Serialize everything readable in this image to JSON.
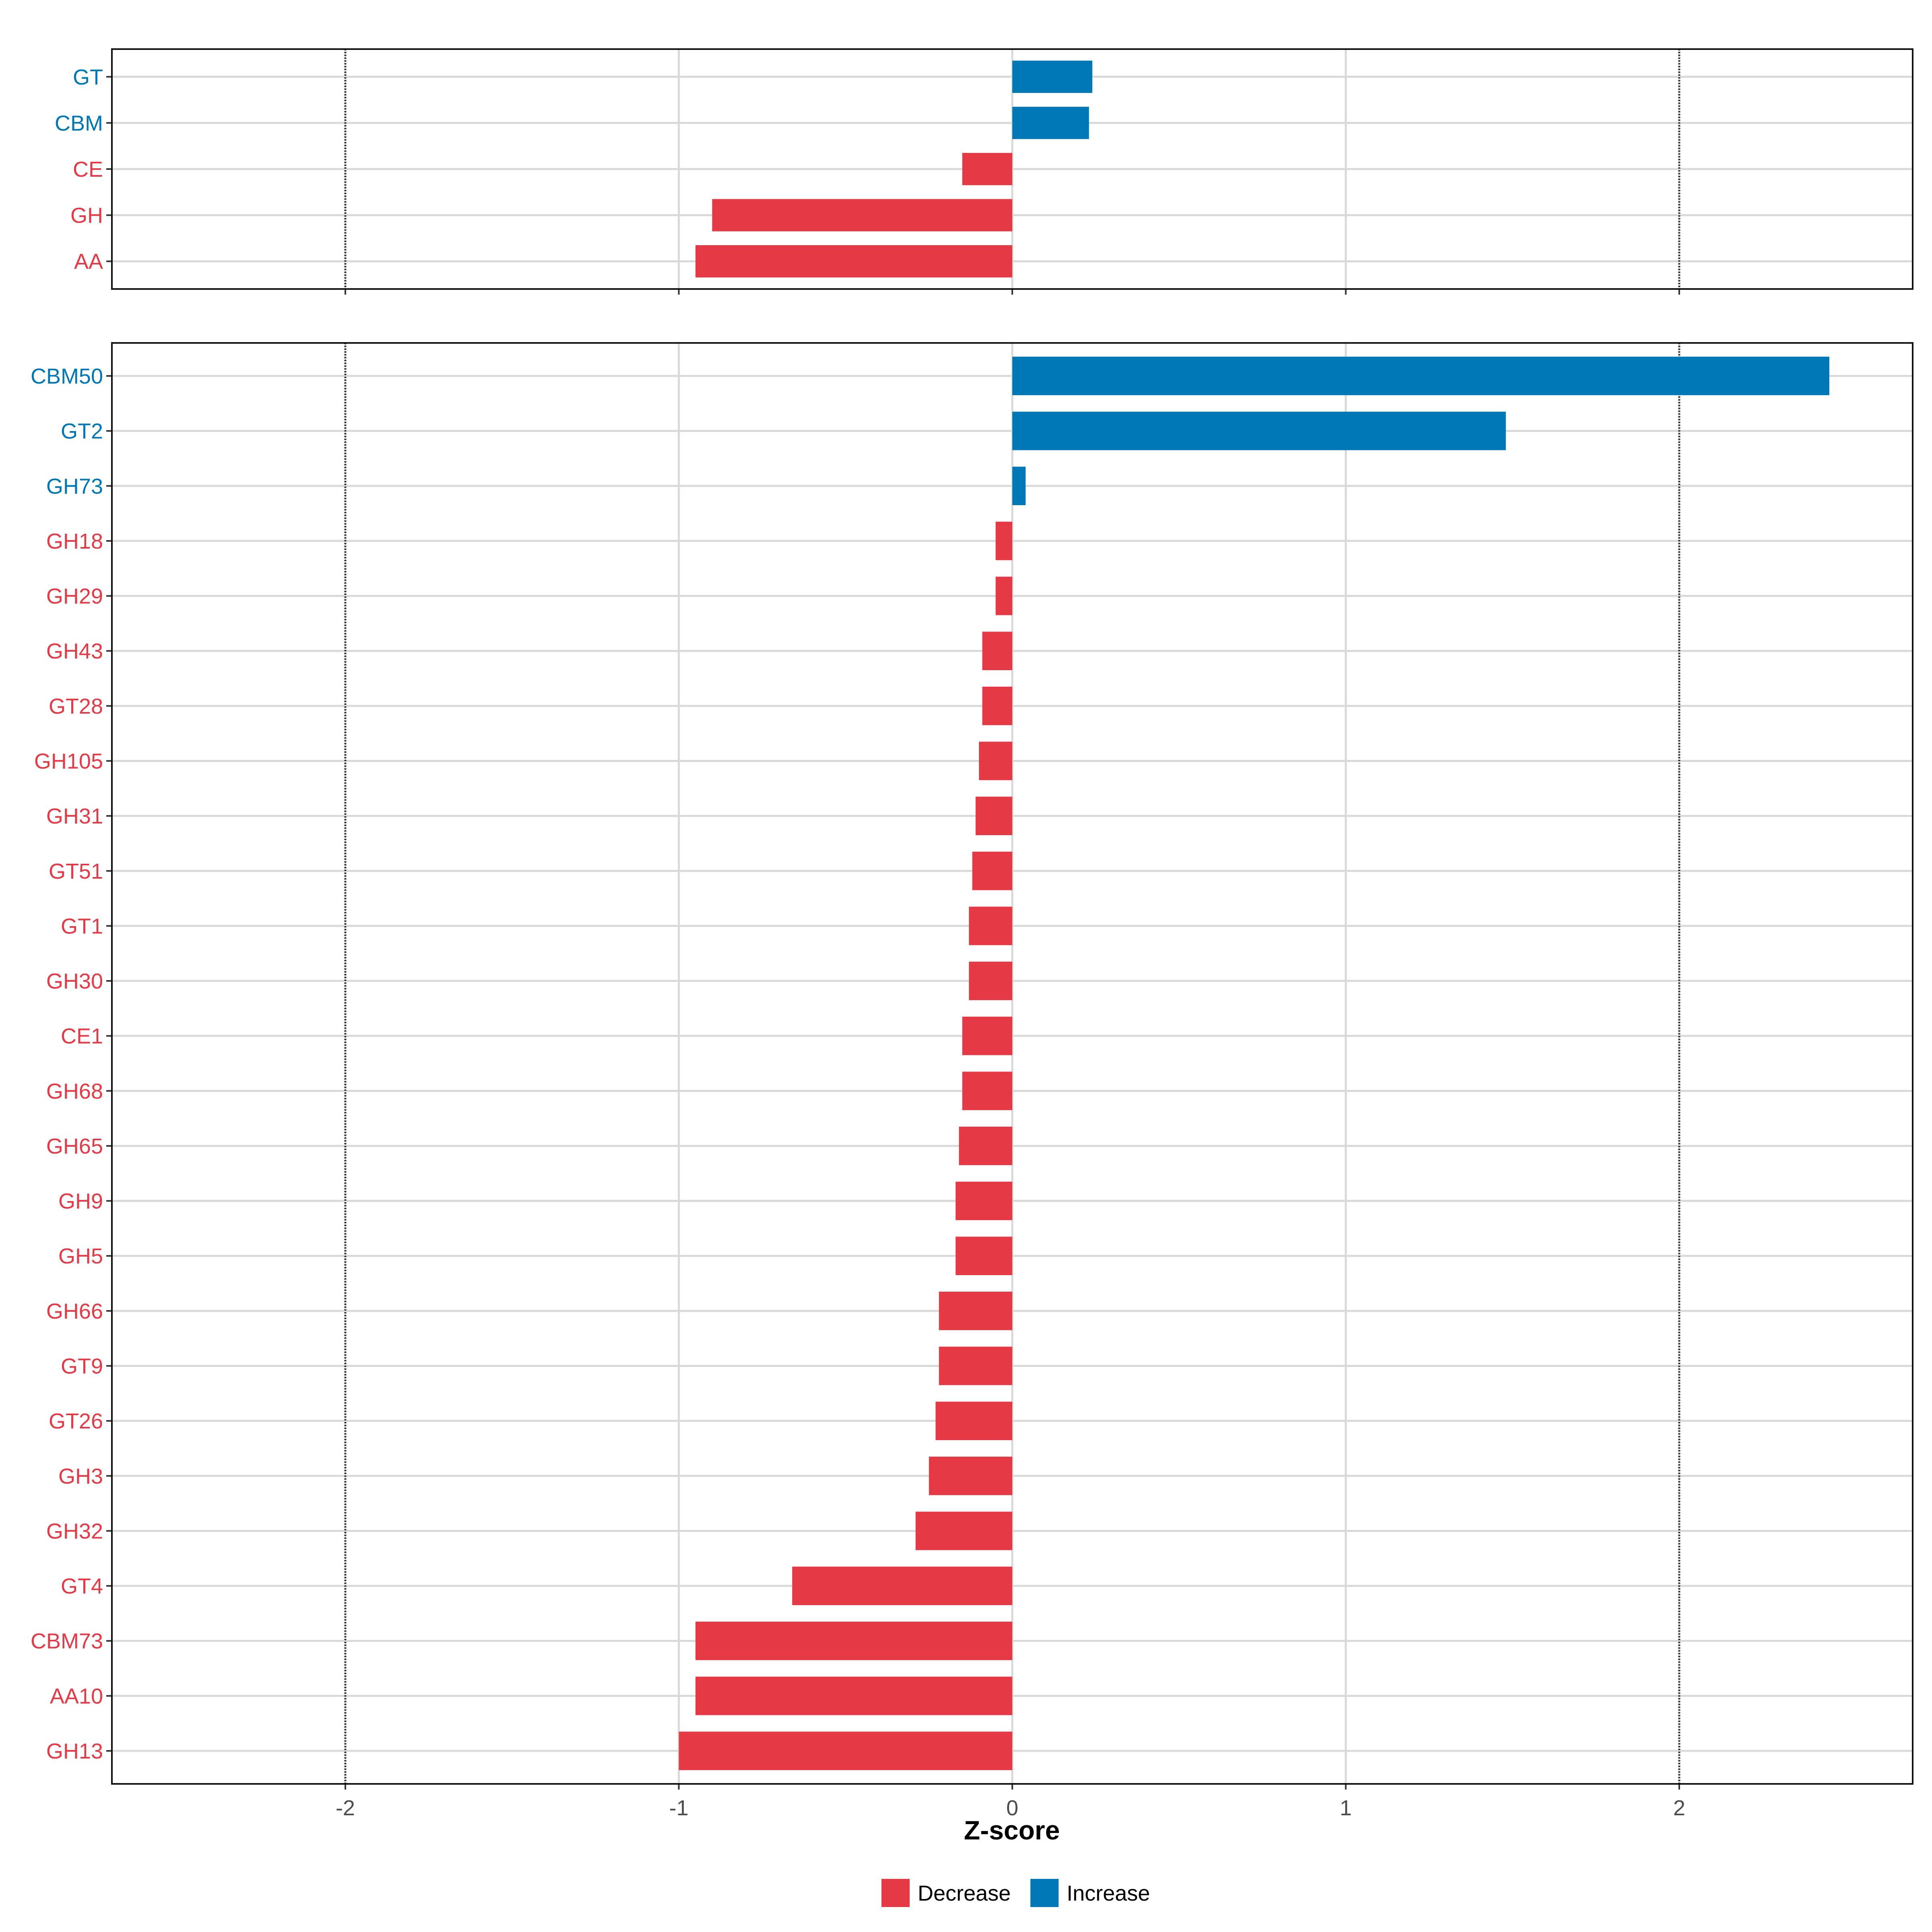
{
  "chart_data": {
    "type": "bar",
    "orientation": "horizontal",
    "xlabel": "Z-score",
    "xlim": [
      -2.7,
      2.7
    ],
    "xticks": [
      -2,
      -1,
      0,
      1,
      2
    ],
    "xtick_labels": [
      "-2",
      "-1",
      "0",
      "1",
      "2"
    ],
    "reference_lines": [
      -2,
      2
    ],
    "grid": true,
    "colors": {
      "Decrease": "#e63946",
      "Increase": "#0077b6"
    },
    "legend": {
      "placement": "bottom",
      "entries": [
        {
          "name": "Decrease",
          "color": "#e63946"
        },
        {
          "name": "Increase",
          "color": "#0077b6"
        }
      ]
    },
    "panels": [
      {
        "categories": [
          "GT",
          "CBM",
          "CE",
          "GH",
          "AA"
        ],
        "values": [
          0.24,
          0.23,
          -0.15,
          -0.9,
          -0.95
        ]
      },
      {
        "categories": [
          "CBM50",
          "GT2",
          "GH73",
          "GH18",
          "GH29",
          "GH43",
          "GT28",
          "GH105",
          "GH31",
          "GT51",
          "GT1",
          "GH30",
          "CE1",
          "GH68",
          "GH65",
          "GH9",
          "GH5",
          "GH66",
          "GT9",
          "GT26",
          "GH3",
          "GH32",
          "GT4",
          "CBM73",
          "AA10",
          "GH13"
        ],
        "values": [
          2.45,
          1.48,
          0.04,
          -0.05,
          -0.05,
          -0.09,
          -0.09,
          -0.1,
          -0.11,
          -0.12,
          -0.13,
          -0.13,
          -0.15,
          -0.15,
          -0.16,
          -0.17,
          -0.17,
          -0.22,
          -0.22,
          -0.23,
          -0.25,
          -0.29,
          -0.66,
          -0.95,
          -0.95,
          -1.0
        ]
      }
    ]
  }
}
